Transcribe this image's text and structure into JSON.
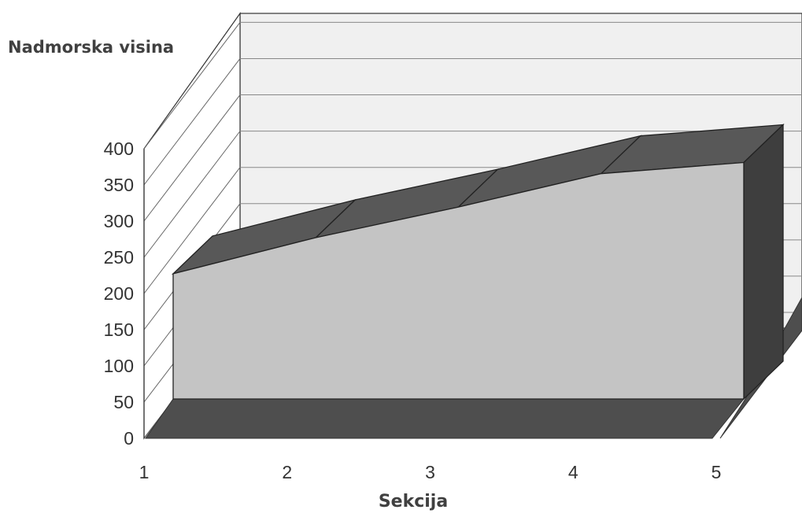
{
  "chart_data": {
    "type": "area",
    "three_d": true,
    "title": "",
    "ylabel": "Nadmorska visina",
    "xlabel": "Sekcija",
    "categories": [
      "1",
      "2",
      "3",
      "4",
      "5"
    ],
    "series": [
      {
        "values": [
          225,
          290,
          345,
          405,
          425
        ]
      }
    ],
    "ylim": [
      0,
      400
    ],
    "yticks": [
      "0",
      "50",
      "100",
      "150",
      "200",
      "250",
      "300",
      "350",
      "400"
    ],
    "grid": true,
    "legend": "none",
    "colors": {
      "front": "#c4c4c4",
      "top": "#585858",
      "side": "#3e3e3e",
      "floor": "#4e4e4e",
      "back_wall": "#f0f0f0",
      "side_wall": "#ffffff"
    }
  }
}
